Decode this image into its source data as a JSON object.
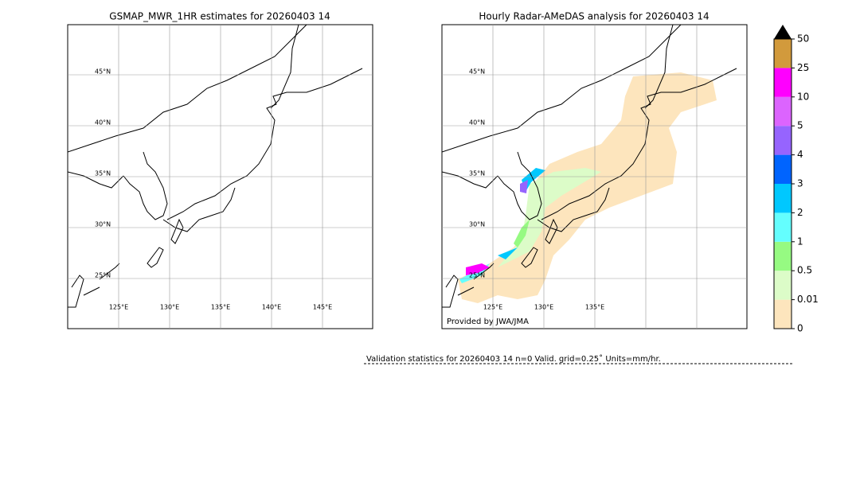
{
  "panels": [
    {
      "title": "GSMAP_MWR_1HR estimates for 20260403 14",
      "lat_labels": [
        "45°N",
        "40°N",
        "35°N",
        "30°N",
        "25°N"
      ],
      "lon_labels": [
        "125°E",
        "130°E",
        "135°E",
        "140°E",
        "145°E"
      ]
    },
    {
      "title": "Hourly Radar-AMeDAS analysis for 20260403 14",
      "lat_labels": [
        "45°N",
        "40°N",
        "35°N",
        "30°N",
        "25°N"
      ],
      "lon_labels": [
        "125°E",
        "130°E",
        "135°E"
      ],
      "credit": "Provided by JWA/JMA"
    }
  ],
  "colorbar": {
    "ticks": [
      0,
      0.01,
      0.5,
      1,
      2,
      3,
      4,
      5,
      10,
      25,
      50
    ],
    "colors": [
      "#fde5bd",
      "#dcfcc8",
      "#96fa82",
      "#64fefe",
      "#00c8fe",
      "#0064fe",
      "#9664fe",
      "#dc64fe",
      "#fe00fe",
      "#d29a3c"
    ],
    "extend_color": "#000000"
  },
  "validation": "Validation statistics for 20260403 14  n=0 Valid. grid=0.25˚ Units=mm/hr."
}
